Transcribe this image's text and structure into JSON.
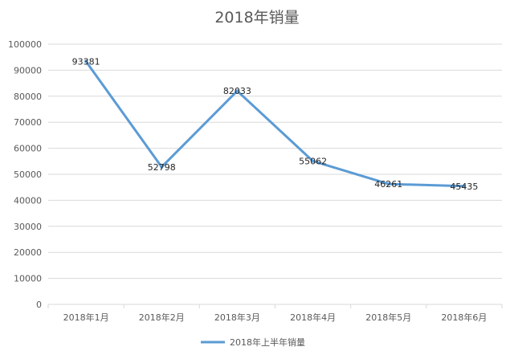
{
  "chart_data": {
    "type": "line",
    "title": "2018年销量",
    "categories": [
      "2018年1月",
      "2018年2月",
      "2018年3月",
      "2018年4月",
      "2018年5月",
      "2018年6月"
    ],
    "series": [
      {
        "name": "2018年上半年销量",
        "values": [
          93381,
          52798,
          82033,
          55062,
          46261,
          45435
        ],
        "color": "#5B9BD5"
      }
    ],
    "ylim": [
      0,
      100000
    ],
    "yticks": [
      0,
      10000,
      20000,
      30000,
      40000,
      50000,
      60000,
      70000,
      80000,
      90000,
      100000
    ],
    "grid": true,
    "legend": "bottom",
    "data_labels": true
  }
}
